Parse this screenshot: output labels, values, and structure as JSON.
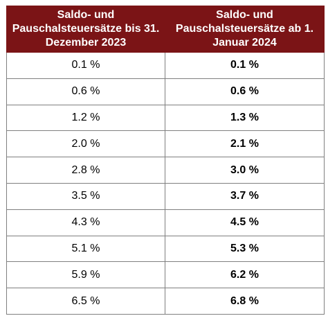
{
  "table": {
    "headers": [
      "Saldo- und Pauschalsteuersätze bis 31. Dezember 2023",
      "Saldo- und Pauschalsteuersätze ab 1. Januar 2024"
    ],
    "rows": [
      {
        "old": "0.1 %",
        "new": "0.1 %"
      },
      {
        "old": "0.6 %",
        "new": "0.6 %"
      },
      {
        "old": "1.2 %",
        "new": "1.3 %"
      },
      {
        "old": "2.0 %",
        "new": "2.1 %"
      },
      {
        "old": "2.8 %",
        "new": "3.0 %"
      },
      {
        "old": "3.5 %",
        "new": "3.7 %"
      },
      {
        "old": "4.3 %",
        "new": "4.5 %"
      },
      {
        "old": "5.1 %",
        "new": "5.3 %"
      },
      {
        "old": "5.9 %",
        "new": "6.2 %"
      },
      {
        "old": "6.5 %",
        "new": "6.8 %"
      }
    ]
  },
  "colors": {
    "header_background": "#7b1416",
    "header_text": "#ffffff",
    "border": "#7f7f7f"
  }
}
